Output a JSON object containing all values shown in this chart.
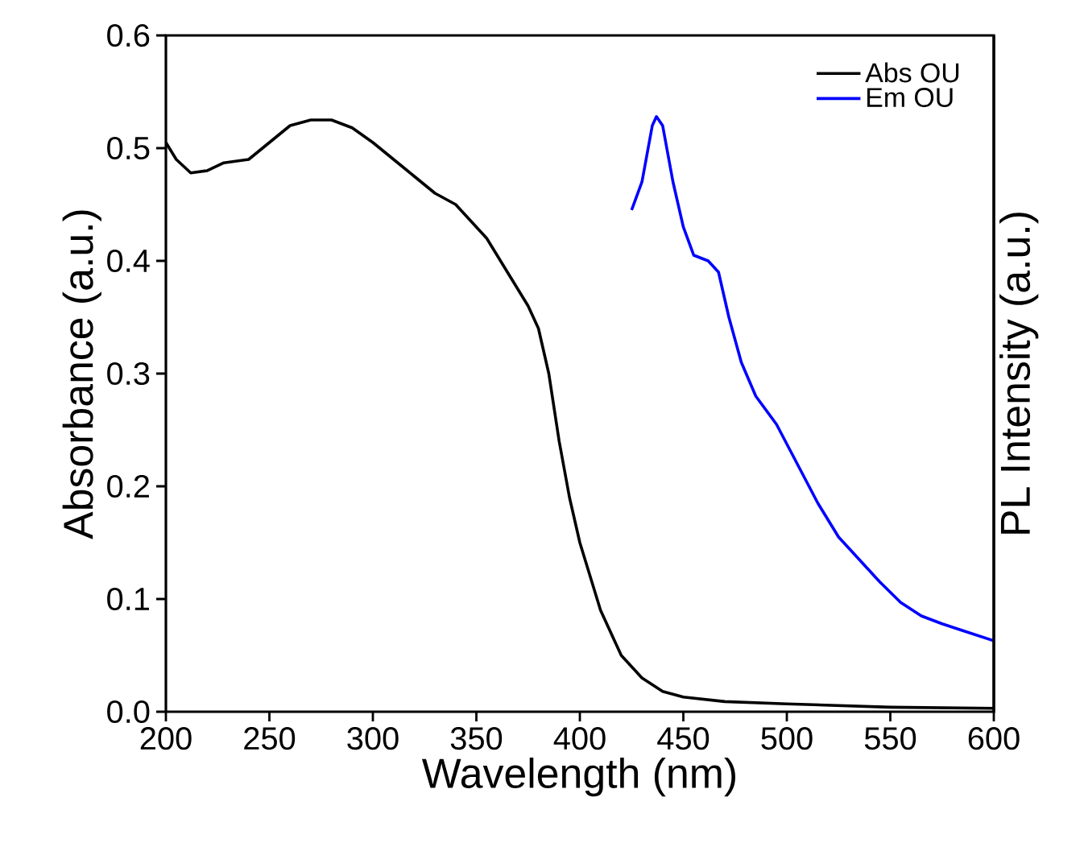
{
  "chart_data": {
    "type": "line",
    "xlabel": "Wavelength (nm)",
    "ylabel": "Absorbance (a.u.)",
    "y2label": "PL Intensity (a.u.)",
    "xlim": [
      200,
      600
    ],
    "xticks": [
      200,
      250,
      300,
      350,
      400,
      450,
      500,
      550,
      600
    ],
    "ylim": [
      0,
      0.6
    ],
    "yticks": [
      {
        "value": 0,
        "label": "0.0"
      },
      0.1,
      0.2,
      0.3,
      0.4,
      0.5,
      0.6
    ],
    "legend": "top right",
    "grid": false,
    "series": [
      {
        "name": "Abs OU",
        "color": "#000000",
        "x": [
          200,
          205,
          212,
          220,
          228,
          240,
          250,
          260,
          270,
          280,
          290,
          300,
          310,
          320,
          330,
          340,
          345,
          355,
          365,
          375,
          380,
          385,
          390,
          395,
          400,
          410,
          420,
          430,
          440,
          450,
          470,
          500,
          550,
          600
        ],
        "values": [
          0.505,
          0.49,
          0.478,
          0.48,
          0.487,
          0.49,
          0.505,
          0.52,
          0.525,
          0.525,
          0.518,
          0.505,
          0.49,
          0.475,
          0.46,
          0.45,
          0.44,
          0.42,
          0.39,
          0.36,
          0.34,
          0.3,
          0.24,
          0.19,
          0.15,
          0.09,
          0.05,
          0.03,
          0.018,
          0.013,
          0.009,
          0.007,
          0.004,
          0.003
        ]
      },
      {
        "name": "Em  OU",
        "color": "#0000ff",
        "x": [
          425,
          430,
          435,
          437,
          440,
          445,
          450,
          455,
          462,
          467,
          472,
          478,
          485,
          495,
          505,
          515,
          525,
          535,
          545,
          555,
          565,
          575,
          585,
          600
        ],
        "values": [
          0.445,
          0.47,
          0.52,
          0.528,
          0.52,
          0.47,
          0.43,
          0.405,
          0.4,
          0.39,
          0.35,
          0.31,
          0.28,
          0.255,
          0.22,
          0.185,
          0.155,
          0.135,
          0.115,
          0.097,
          0.085,
          0.078,
          0.072,
          0.063
        ]
      }
    ]
  }
}
